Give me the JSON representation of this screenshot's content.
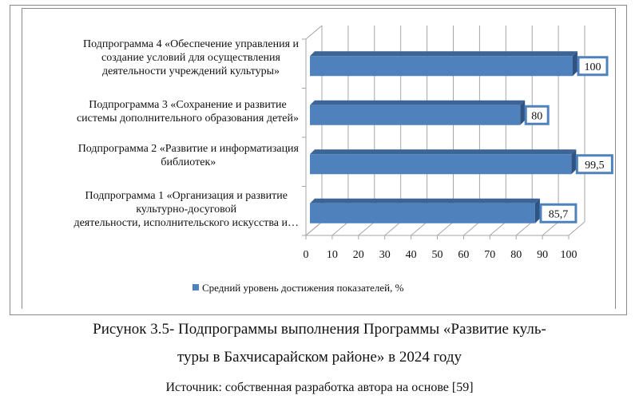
{
  "chart_data": {
    "type": "bar",
    "orientation": "horizontal",
    "style": "3d",
    "categories": [
      "Подпрограмма 1 «Организация и развитие культурно-досуговой деятельности, исполнительского искусства и…",
      "Подпрограмма 2 «Развитие и информатизация библиотек»",
      "Подпрограмма 3 «Сохранение и развитие системы дополнительного образования детей»",
      "Подпрограмма 4 «Обеспечение управления и создание условий для осуществления деятельности учреждений культуры»"
    ],
    "category_lines": [
      [
        "Подпрограмма 1 «Организация и развитие",
        "культурно-досуговой",
        "деятельности, исполнительского искусства и…"
      ],
      [
        "Подпрограмма 2 «Развитие и информатизация",
        "библиотек»"
      ],
      [
        "Подпрограмма 3 «Сохранение и развитие",
        "системы дополнительного образования детей»"
      ],
      [
        "Подпрограмма 4 «Обеспечение управления и",
        "создание условий для осуществления",
        "деятельности учреждений культуры»"
      ]
    ],
    "series": [
      {
        "name": "Средний уровень достижения показателей, %",
        "values": [
          85.7,
          99.5,
          80,
          100
        ]
      }
    ],
    "data_labels": [
      "85,7",
      "99,5",
      "80",
      "100"
    ],
    "xlim": [
      0,
      100
    ],
    "x_ticks": [
      0,
      10,
      20,
      30,
      40,
      50,
      60,
      70,
      80,
      90,
      100
    ],
    "grid": true,
    "legend": "bottom",
    "colors": {
      "bar": "#4f81bd",
      "bar_top": "#3c6496",
      "grid": "#a6a6a6"
    }
  },
  "caption": {
    "line1": "Рисунок 3.5- Подпрограммы выполнения Программы «Развитие куль-",
    "line2": "туры в Бахчисарайском районе» в 2024 году",
    "source": "Источник: собственная разработка автора на основе [59]"
  }
}
